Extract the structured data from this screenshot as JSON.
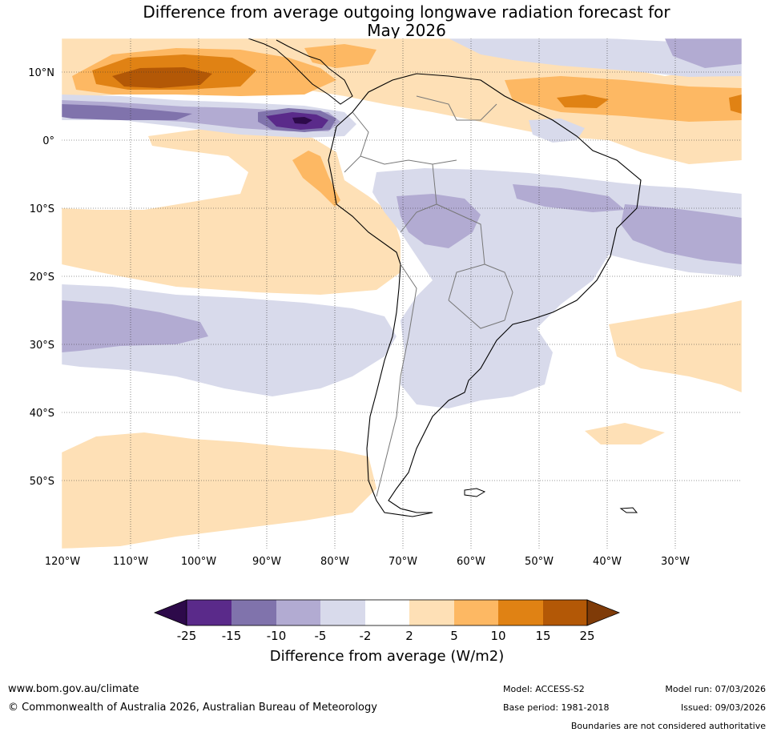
{
  "title": {
    "line1": "Difference from average outgoing longwave radiation forecast for",
    "line2": "May 2026"
  },
  "map": {
    "lon_labels": [
      "120°W",
      "110°W",
      "100°W",
      "90°W",
      "80°W",
      "70°W",
      "60°W",
      "50°W",
      "40°W",
      "30°W"
    ],
    "lat_labels": [
      "10°N",
      "0°",
      "10°S",
      "20°S",
      "30°S",
      "40°S",
      "50°S"
    ],
    "lon_range": [
      -120,
      -20
    ],
    "lat_range": [
      -60,
      15
    ]
  },
  "colorbar": {
    "ticks": [
      "-25",
      "-15",
      "-10",
      "-5",
      "-2",
      "2",
      "5",
      "10",
      "15",
      "25"
    ],
    "label": "Difference from average (W/m2)",
    "colors": {
      "lt_-25": "#2d0a4a",
      "-25_-15": "#5a2a8a",
      "-15_-10": "#8073ac",
      "-10_-5": "#b2abd2",
      "-5_-2": "#d8daeb",
      "-2_2": "#ffffff",
      "2_5": "#fee0b6",
      "5_10": "#fdb863",
      "10_15": "#e08214",
      "15_25": "#b35806",
      "gt_25": "#7f3b08"
    }
  },
  "footer": {
    "url": "www.bom.gov.au/climate",
    "copyright": "© Commonwealth of Australia 2026, Australian Bureau of Meteorology",
    "model": "Model: ACCESS-S2",
    "base_period": "Base period: 1981-2018",
    "model_run": "Model run: 07/03/2026",
    "issued": "Issued: 09/03/2026",
    "disclaimer": "Boundaries are not considered authoritative"
  }
}
